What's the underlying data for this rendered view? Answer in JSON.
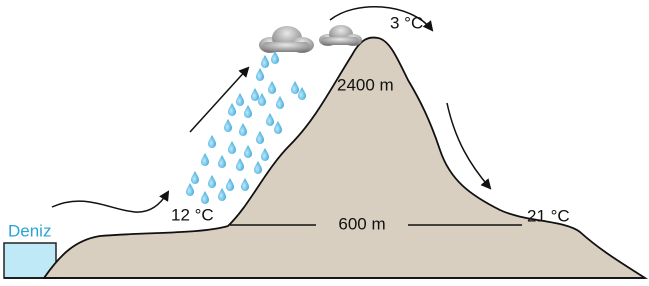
{
  "labels": {
    "sea": "Deniz",
    "temp_windward": "12 °C",
    "height_base": "600 m",
    "temp_leeward": "21 °C",
    "temp_peak": "3 °C",
    "height_peak": "2400 m"
  }
}
